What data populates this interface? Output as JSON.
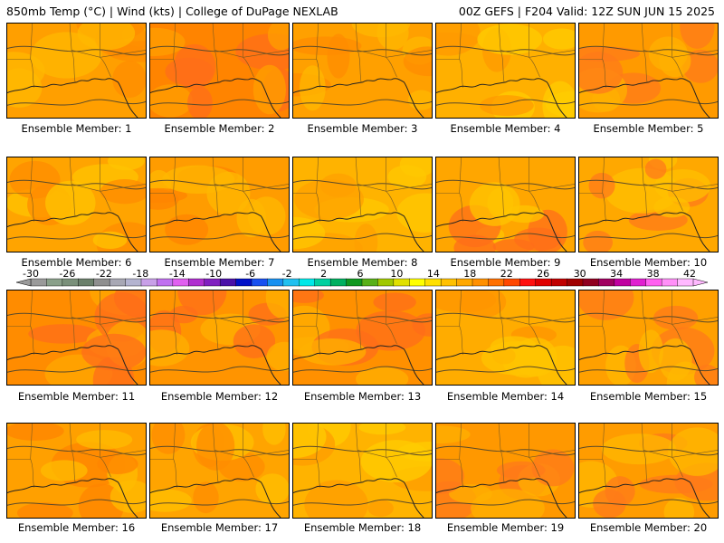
{
  "header": {
    "left": "850mb Temp (°C) | Wind (kts) | College of DuPage NEXLAB",
    "right": "00Z GEFS | F204 Valid: 12Z SUN JUN 15 2025"
  },
  "members": [
    {
      "label": "Ensemble Member: 1",
      "base": "#ff9f00",
      "accents": [
        "#ffb800",
        "#ff8c00"
      ]
    },
    {
      "label": "Ensemble Member: 2",
      "base": "#ff8400",
      "accents": [
        "#ff6d1a",
        "#ff9f00"
      ]
    },
    {
      "label": "Ensemble Member: 3",
      "base": "#ffa000",
      "accents": [
        "#ffb800",
        "#ff8c00"
      ]
    },
    {
      "label": "Ensemble Member: 4",
      "base": "#ffb000",
      "accents": [
        "#ffcc00",
        "#ff9a00"
      ]
    },
    {
      "label": "Ensemble Member: 5",
      "base": "#ff9a00",
      "accents": [
        "#ff7a1a",
        "#ffb000"
      ]
    },
    {
      "label": "Ensemble Member: 6",
      "base": "#ffa400",
      "accents": [
        "#ffc400",
        "#ff8c00"
      ]
    },
    {
      "label": "Ensemble Member: 7",
      "base": "#ff9c00",
      "accents": [
        "#ffb800",
        "#ff8400"
      ]
    },
    {
      "label": "Ensemble Member: 8",
      "base": "#ffb300",
      "accents": [
        "#ffc800",
        "#ffa000"
      ]
    },
    {
      "label": "Ensemble Member: 9",
      "base": "#ffa600",
      "accents": [
        "#ff6d1a",
        "#ffc400"
      ]
    },
    {
      "label": "Ensemble Member: 10",
      "base": "#ffa800",
      "accents": [
        "#ff7a1a",
        "#ffc000"
      ]
    },
    {
      "label": "Ensemble Member: 11",
      "base": "#ff8c00",
      "accents": [
        "#ff6d1a",
        "#ffa800"
      ]
    },
    {
      "label": "Ensemble Member: 12",
      "base": "#ff9400",
      "accents": [
        "#ff6d1a",
        "#ffb000"
      ]
    },
    {
      "label": "Ensemble Member: 13",
      "base": "#ff9000",
      "accents": [
        "#ff6d1a",
        "#ffb000"
      ]
    },
    {
      "label": "Ensemble Member: 14",
      "base": "#ffac00",
      "accents": [
        "#ffc400",
        "#ff9400"
      ]
    },
    {
      "label": "Ensemble Member: 15",
      "base": "#ffa000",
      "accents": [
        "#ff7a1a",
        "#ffb800"
      ]
    },
    {
      "label": "Ensemble Member: 16",
      "base": "#ffa000",
      "accents": [
        "#ff8400",
        "#ffbc00"
      ]
    },
    {
      "label": "Ensemble Member: 17",
      "base": "#ffa400",
      "accents": [
        "#ff8c00",
        "#ffc000"
      ]
    },
    {
      "label": "Ensemble Member: 18",
      "base": "#ffb300",
      "accents": [
        "#ffcc00",
        "#ff9c00"
      ]
    },
    {
      "label": "Ensemble Member: 19",
      "base": "#ff9800",
      "accents": [
        "#ff7a1a",
        "#ffb000"
      ]
    },
    {
      "label": "Ensemble Member: 20",
      "base": "#ff9c00",
      "accents": [
        "#ff7a1a",
        "#ffb800"
      ]
    }
  ],
  "colorbar": {
    "tick_labels": [
      "-30",
      "-26",
      "-22",
      "-18",
      "-14",
      "-10",
      "-6",
      "-2",
      "2",
      "6",
      "10",
      "14",
      "18",
      "22",
      "26",
      "30",
      "34",
      "38",
      "42"
    ],
    "colors": [
      "#9a9a9a",
      "#8aa08a",
      "#7a907a",
      "#6b806b",
      "#8f8f8f",
      "#a8a8b4",
      "#b4b4d0",
      "#c8a0e8",
      "#c070f0",
      "#e060f0",
      "#b030d0",
      "#8020c0",
      "#4a10a8",
      "#0010c8",
      "#1850f0",
      "#1890f0",
      "#20c0f0",
      "#00e8e8",
      "#00d0a0",
      "#00b060",
      "#109820",
      "#58b018",
      "#a0c800",
      "#e0e000",
      "#ffff00",
      "#ffe000",
      "#ffc000",
      "#ffa800",
      "#ff9000",
      "#ff7000",
      "#ff4800",
      "#ff1010",
      "#e00000",
      "#c00000",
      "#a00000",
      "#900020",
      "#a00060",
      "#c000a0",
      "#e020d0",
      "#ff60f0",
      "#ff90f8",
      "#ffb8ff"
    ]
  }
}
